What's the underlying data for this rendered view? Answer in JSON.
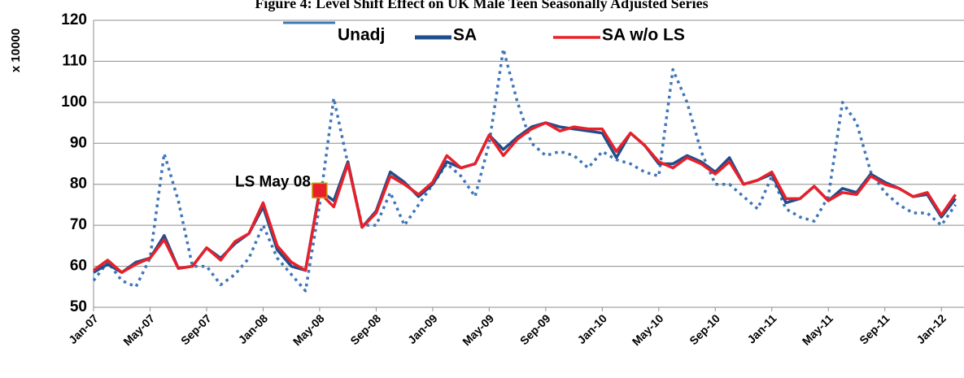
{
  "chart_data": {
    "type": "line",
    "title": "Figure 4: Level Shift Effect on UK Male Teen Seasonally Adjusted Series",
    "y_axis_label": "x 10000",
    "categories": [
      "Jan-07",
      null,
      null,
      null,
      "May-07",
      null,
      null,
      null,
      "Sep-07",
      null,
      null,
      null,
      "Jan-08",
      null,
      null,
      null,
      "May-08",
      null,
      null,
      null,
      "Sep-08",
      null,
      null,
      null,
      "Jan-09",
      null,
      null,
      null,
      "May-09",
      null,
      null,
      null,
      "Sep-09",
      null,
      null,
      null,
      "Jan-10",
      null,
      null,
      null,
      "May-10",
      null,
      null,
      null,
      "Sep-10",
      null,
      null,
      null,
      "Jan-11",
      null,
      null,
      null,
      "May-11",
      null,
      null,
      null,
      "Sep-11",
      null,
      null,
      null,
      "Jan-12",
      null
    ],
    "series": [
      {
        "name": "Unadj",
        "color": "#3f76b8",
        "style": "dotted",
        "values": [
          56.5,
          61,
          56.5,
          55,
          62,
          87.5,
          76,
          60,
          60,
          55.5,
          58,
          62,
          70,
          62,
          58,
          54,
          75,
          101,
          85,
          70,
          70,
          78,
          70,
          75,
          80,
          85,
          82,
          77,
          90,
          113,
          100,
          90,
          87,
          88,
          87,
          84,
          88,
          86,
          85,
          83,
          82,
          108,
          100,
          88,
          80,
          80,
          77,
          74,
          82,
          74,
          72,
          71,
          77,
          100,
          95,
          83,
          78,
          75,
          73,
          73,
          70,
          75
        ]
      },
      {
        "name": "SA",
        "color": "#1f4e8c",
        "style": "solid",
        "values": [
          58.5,
          60.5,
          58.5,
          61,
          62,
          67.5,
          59.5,
          60,
          64.5,
          62,
          65.5,
          68,
          74.5,
          64,
          60,
          59,
          78.5,
          76,
          85.5,
          69.5,
          73.5,
          83,
          80.5,
          77,
          80,
          85.5,
          84,
          85,
          92,
          88.5,
          91.5,
          94,
          95,
          94,
          93.5,
          93,
          92.5,
          86.5,
          92.5,
          89.5,
          85,
          85,
          87,
          85.5,
          83,
          86.5,
          80,
          81,
          82.5,
          75.5,
          76.5,
          79.5,
          76,
          79,
          78,
          82.5,
          80.5,
          79,
          77,
          77.5,
          72,
          76.5
        ]
      },
      {
        "name": "SA w/o LS",
        "color": "#e8202a",
        "style": "solid",
        "values": [
          59,
          61.5,
          58.5,
          60.5,
          62,
          66.5,
          59.5,
          60,
          64.5,
          61.5,
          66,
          68,
          75.5,
          65,
          61,
          59,
          78,
          74.5,
          85,
          69.5,
          73,
          82,
          80,
          77.5,
          80.5,
          87,
          84,
          85,
          92,
          87,
          91,
          93.5,
          95,
          93,
          94,
          93.5,
          93.5,
          88,
          92.5,
          89.5,
          85.5,
          84,
          86.5,
          85,
          82.5,
          85.5,
          80,
          81,
          83,
          76.5,
          76.5,
          79.5,
          76,
          78,
          77.5,
          82,
          80,
          79,
          77,
          78,
          72.5,
          77.5
        ]
      }
    ],
    "annotation": "LS May 08",
    "ylim": [
      50,
      120
    ],
    "yticks": [
      50,
      60,
      70,
      80,
      90,
      100,
      110,
      120
    ],
    "grid": true
  }
}
